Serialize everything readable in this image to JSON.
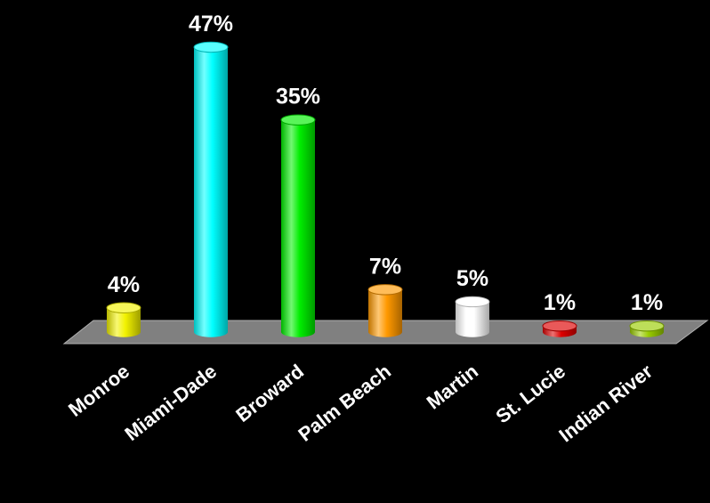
{
  "chart_data": {
    "type": "bar",
    "title": "",
    "xlabel": "",
    "ylabel": "",
    "categories": [
      "Monroe",
      "Miami-Dade",
      "Broward",
      "Palm Beach",
      "Martin",
      "St. Lucie",
      "Indian River"
    ],
    "values": [
      4,
      47,
      35,
      7,
      5,
      1,
      1
    ],
    "value_labels": [
      "4%",
      "47%",
      "35%",
      "7%",
      "5%",
      "1%",
      "1%"
    ],
    "unit": "%",
    "colors": [
      "#f2f200",
      "#00ffff",
      "#00ee00",
      "#ff9900",
      "#ffffff",
      "#dd0000",
      "#99cc00"
    ],
    "ylim": [
      0,
      47
    ],
    "grid": false,
    "legend": "none",
    "background": "#000000",
    "floor_color": "#808080"
  }
}
